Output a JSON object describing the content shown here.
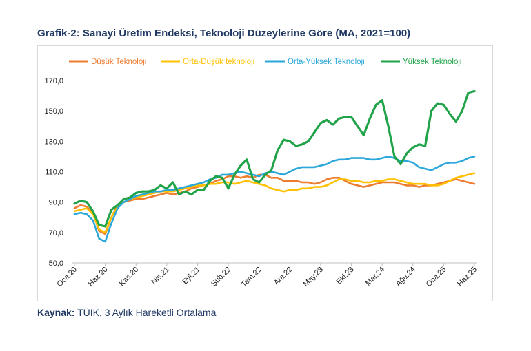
{
  "title": "Grafik-2: Sanayi Üretim Endeksi, Teknoloji Düzeylerine Göre (MA, 2021=100)",
  "source_label": "Kaynak:",
  "source_text": "TÜİK, 3 Aylık Hareketli Ortalama",
  "chart_data": {
    "type": "line",
    "title": "Grafik-2: Sanayi Üretim Endeksi, Teknoloji Düzeylerine Göre (MA, 2021=100)",
    "xlabel": "",
    "ylabel": "",
    "ylim": [
      50,
      170
    ],
    "yticks": [
      50,
      70,
      90,
      110,
      130,
      150,
      170
    ],
    "ytick_labels": [
      "50,0",
      "70,0",
      "90,0",
      "110,0",
      "130,0",
      "150,0",
      "170,0"
    ],
    "x_tick_labels": [
      {
        "index": 0,
        "label": "Oca.20"
      },
      {
        "index": 5,
        "label": "Haz.20"
      },
      {
        "index": 10,
        "label": "Kas.20"
      },
      {
        "index": 15,
        "label": "Nis.21"
      },
      {
        "index": 20,
        "label": "Eyl.21"
      },
      {
        "index": 25,
        "label": "Şub.22"
      },
      {
        "index": 30,
        "label": "Tem.22"
      },
      {
        "index": 35,
        "label": "Ara.22"
      },
      {
        "index": 40,
        "label": "May.23"
      },
      {
        "index": 45,
        "label": "Eki.23"
      },
      {
        "index": 50,
        "label": "Mar.24"
      },
      {
        "index": 55,
        "label": "Ağu.24"
      },
      {
        "index": 60,
        "label": "Oca.25"
      },
      {
        "index": 65,
        "label": "Haz.25"
      }
    ],
    "legend_position": "top",
    "series": [
      {
        "name": "Düşük Teknoloji",
        "color": "#ed7d31",
        "values": [
          86,
          88,
          87,
          83,
          71,
          69,
          80,
          88,
          90,
          91,
          92,
          92,
          93,
          94,
          95,
          96,
          95,
          96,
          97,
          99,
          100,
          101,
          102,
          104,
          105,
          107,
          107,
          106,
          107,
          106,
          108,
          108,
          106,
          106,
          104,
          104,
          104,
          103,
          103,
          102,
          103,
          105,
          106,
          106,
          104,
          102,
          101,
          100,
          101,
          102,
          103,
          103,
          103,
          102,
          101,
          101,
          100,
          101,
          101,
          102,
          103,
          104,
          105,
          104,
          103,
          102
        ]
      },
      {
        "name": "Orta-Düşük teknoloji",
        "color": "#ffc000",
        "values": [
          84,
          85,
          86,
          82,
          72,
          70,
          80,
          87,
          90,
          92,
          93,
          94,
          95,
          96,
          97,
          97,
          97,
          98,
          99,
          100,
          101,
          101,
          102,
          102,
          103,
          103,
          102,
          103,
          104,
          103,
          102,
          101,
          99,
          98,
          97,
          98,
          98,
          99,
          99,
          100,
          100,
          101,
          103,
          105,
          105,
          104,
          104,
          103,
          103,
          104,
          104,
          105,
          105,
          104,
          103,
          102,
          102,
          102,
          101,
          101,
          102,
          104,
          106,
          107,
          108,
          109
        ]
      },
      {
        "name": "Orta-Yüksek Teknoloji",
        "color": "#2ba7d9",
        "values": [
          82,
          83,
          82,
          78,
          66,
          64,
          76,
          86,
          90,
          92,
          94,
          95,
          96,
          97,
          97,
          98,
          98,
          99,
          100,
          101,
          102,
          103,
          105,
          106,
          108,
          108,
          109,
          110,
          109,
          108,
          107,
          109,
          110,
          109,
          108,
          110,
          112,
          113,
          113,
          113,
          114,
          115,
          117,
          118,
          118,
          119,
          119,
          119,
          118,
          118,
          119,
          120,
          119,
          117,
          117,
          116,
          113,
          112,
          111,
          113,
          115,
          116,
          116,
          117,
          119,
          120
        ]
      },
      {
        "name": "Yüksek Teknoloji",
        "color": "#20a349",
        "values": [
          89,
          91,
          90,
          84,
          75,
          74,
          85,
          88,
          92,
          93,
          96,
          97,
          97,
          98,
          101,
          99,
          103,
          95,
          97,
          95,
          98,
          98,
          104,
          107,
          106,
          99,
          108,
          114,
          118,
          105,
          103,
          108,
          111,
          124,
          131,
          130,
          127,
          128,
          130,
          136,
          142,
          144,
          141,
          145,
          146,
          146,
          140,
          134,
          145,
          154,
          157,
          140,
          120,
          115,
          122,
          126,
          128,
          127,
          150,
          155,
          154,
          148,
          143,
          150,
          162,
          163
        ]
      }
    ]
  }
}
